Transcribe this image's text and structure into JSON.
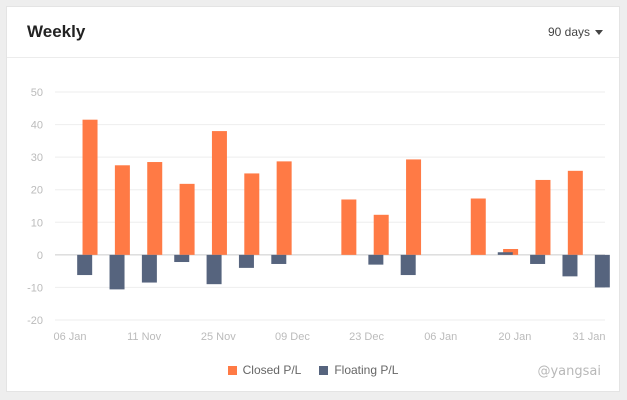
{
  "header": {
    "title": "Weekly",
    "range_label": "90 days"
  },
  "watermark": "@yangsai",
  "colors": {
    "closed": "#ff7a45",
    "floating": "#56647e",
    "grid": "#eeeeee",
    "zero": "#cccccc",
    "tick": "#bbbbbb"
  },
  "chart_data": {
    "type": "bar",
    "ylim": [
      -20,
      50
    ],
    "yticks": [
      50,
      40,
      30,
      20,
      10,
      0,
      -10,
      -20
    ],
    "x_tick_labels": [
      "06 Jan",
      "11 Nov",
      "25 Nov",
      "09 Dec",
      "23 Dec",
      "06 Jan",
      "20 Jan",
      "31 Jan"
    ],
    "series": [
      {
        "name": "Closed P/L",
        "values": [
          0,
          41.5,
          27.5,
          28.5,
          21.8,
          38,
          25,
          28.7,
          0,
          17,
          12.3,
          29.3,
          0,
          17.3,
          1.8,
          23,
          25.8
        ]
      },
      {
        "name": "Floating P/L",
        "values": [
          -6.2,
          -10.6,
          -8.5,
          -2.2,
          -9,
          -4,
          -2.8,
          0,
          0,
          -3,
          -6.2,
          0,
          0,
          0.8,
          -2.8,
          -6.6,
          -10
        ]
      }
    ],
    "legend_position": "bottom-center",
    "grid": true
  }
}
